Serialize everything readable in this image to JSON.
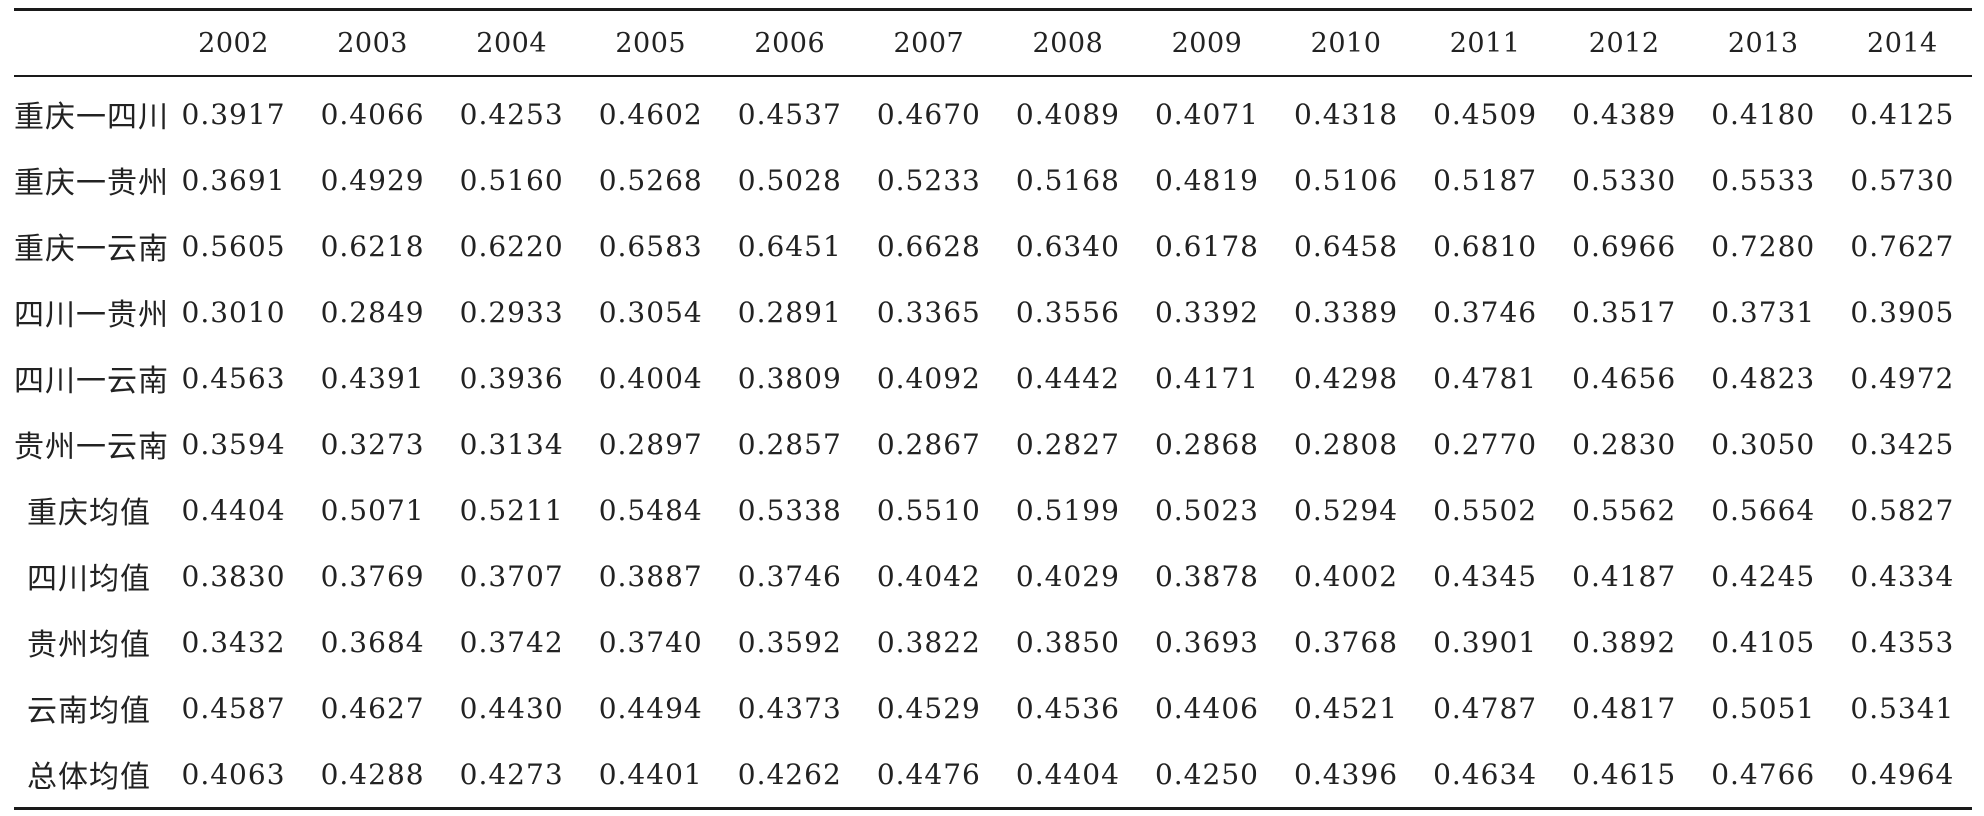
{
  "table": {
    "corner_label": "",
    "years": [
      "2002",
      "2003",
      "2004",
      "2005",
      "2006",
      "2007",
      "2008",
      "2009",
      "2010",
      "2011",
      "2012",
      "2013",
      "2014"
    ],
    "rows": [
      {
        "label": "重庆一四川",
        "values": [
          "0.3917",
          "0.4066",
          "0.4253",
          "0.4602",
          "0.4537",
          "0.4670",
          "0.4089",
          "0.4071",
          "0.4318",
          "0.4509",
          "0.4389",
          "0.4180",
          "0.4125"
        ]
      },
      {
        "label": "重庆一贵州",
        "values": [
          "0.3691",
          "0.4929",
          "0.5160",
          "0.5268",
          "0.5028",
          "0.5233",
          "0.5168",
          "0.4819",
          "0.5106",
          "0.5187",
          "0.5330",
          "0.5533",
          "0.5730"
        ]
      },
      {
        "label": "重庆一云南",
        "values": [
          "0.5605",
          "0.6218",
          "0.6220",
          "0.6583",
          "0.6451",
          "0.6628",
          "0.6340",
          "0.6178",
          "0.6458",
          "0.6810",
          "0.6966",
          "0.7280",
          "0.7627"
        ]
      },
      {
        "label": "四川一贵州",
        "values": [
          "0.3010",
          "0.2849",
          "0.2933",
          "0.3054",
          "0.2891",
          "0.3365",
          "0.3556",
          "0.3392",
          "0.3389",
          "0.3746",
          "0.3517",
          "0.3731",
          "0.3905"
        ]
      },
      {
        "label": "四川一云南",
        "values": [
          "0.4563",
          "0.4391",
          "0.3936",
          "0.4004",
          "0.3809",
          "0.4092",
          "0.4442",
          "0.4171",
          "0.4298",
          "0.4781",
          "0.4656",
          "0.4823",
          "0.4972"
        ]
      },
      {
        "label": "贵州一云南",
        "values": [
          "0.3594",
          "0.3273",
          "0.3134",
          "0.2897",
          "0.2857",
          "0.2867",
          "0.2827",
          "0.2868",
          "0.2808",
          "0.2770",
          "0.2830",
          "0.3050",
          "0.3425"
        ]
      },
      {
        "label": "重庆均值",
        "values": [
          "0.4404",
          "0.5071",
          "0.5211",
          "0.5484",
          "0.5338",
          "0.5510",
          "0.5199",
          "0.5023",
          "0.5294",
          "0.5502",
          "0.5562",
          "0.5664",
          "0.5827"
        ]
      },
      {
        "label": "四川均值",
        "values": [
          "0.3830",
          "0.3769",
          "0.3707",
          "0.3887",
          "0.3746",
          "0.4042",
          "0.4029",
          "0.3878",
          "0.4002",
          "0.4345",
          "0.4187",
          "0.4245",
          "0.4334"
        ]
      },
      {
        "label": "贵州均值",
        "values": [
          "0.3432",
          "0.3684",
          "0.3742",
          "0.3740",
          "0.3592",
          "0.3822",
          "0.3850",
          "0.3693",
          "0.3768",
          "0.3901",
          "0.3892",
          "0.4105",
          "0.4353"
        ]
      },
      {
        "label": "云南均值",
        "values": [
          "0.4587",
          "0.4627",
          "0.4430",
          "0.4494",
          "0.4373",
          "0.4529",
          "0.4536",
          "0.4406",
          "0.4521",
          "0.4787",
          "0.4817",
          "0.5051",
          "0.5341"
        ]
      },
      {
        "label": "总体均值",
        "values": [
          "0.4063",
          "0.4288",
          "0.4273",
          "0.4401",
          "0.4262",
          "0.4476",
          "0.4404",
          "0.4250",
          "0.4396",
          "0.4634",
          "0.4615",
          "0.4766",
          "0.4964"
        ]
      }
    ]
  }
}
